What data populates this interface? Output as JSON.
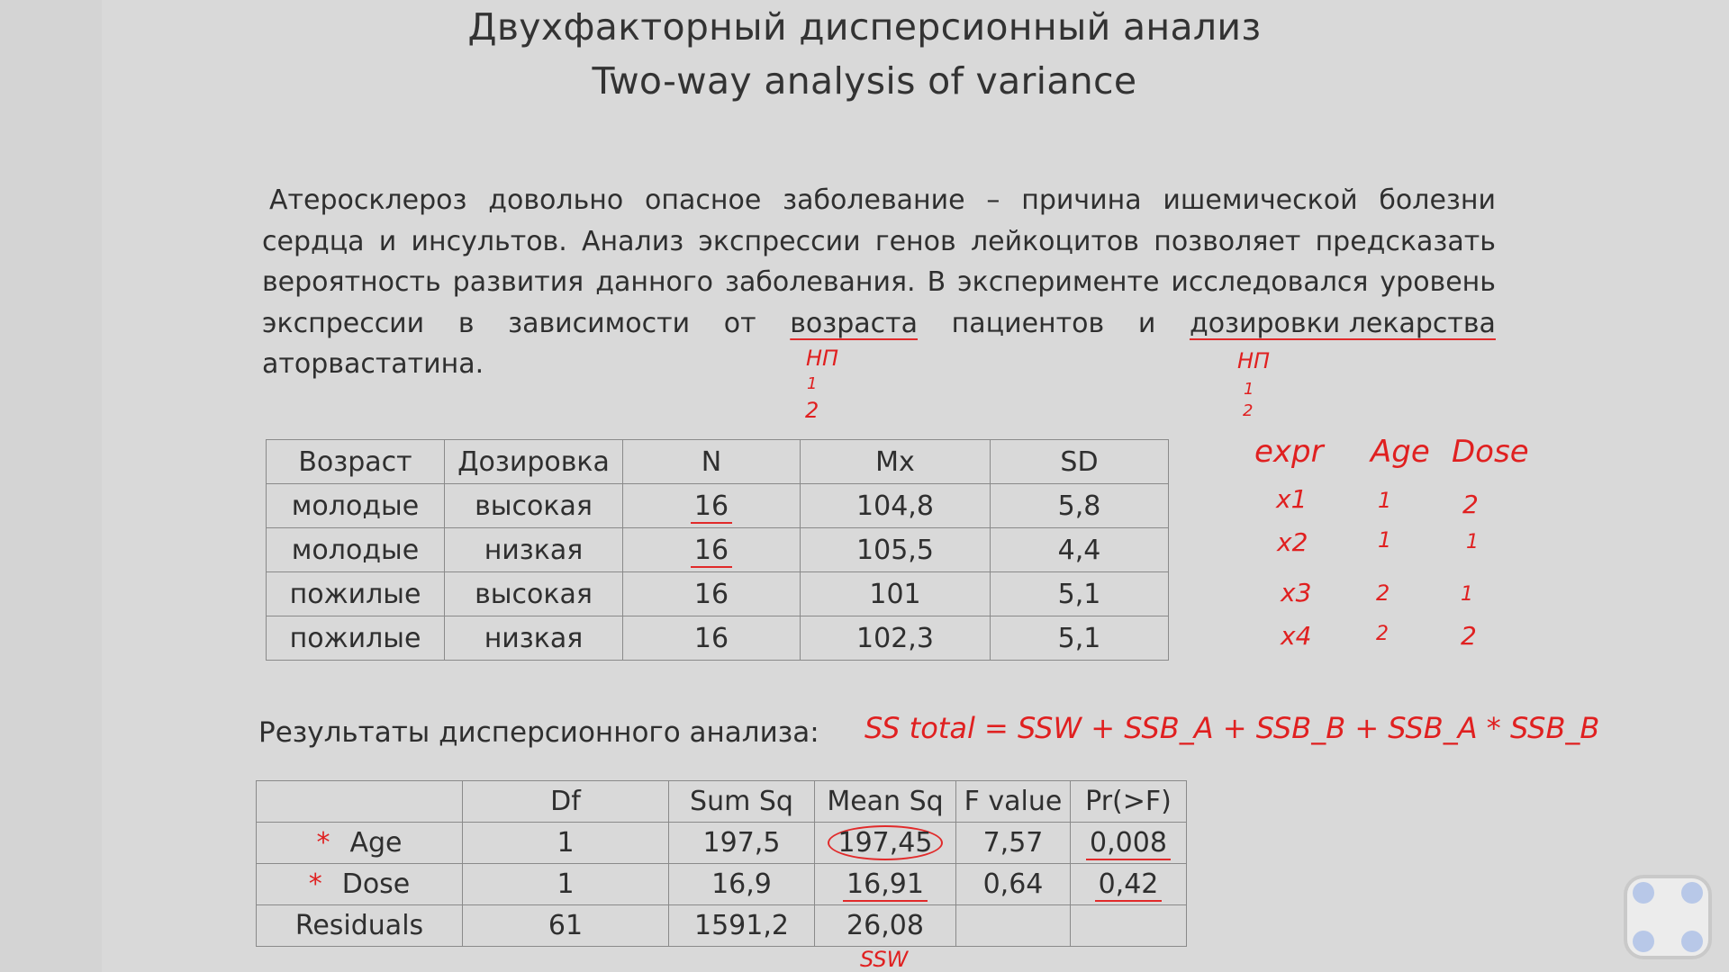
{
  "title_ru": "Двухфакторный дисперсионный анализ",
  "title_en": "Two-way analysis of variance",
  "paragraph": {
    "line1": [
      "Атеросклероз",
      "довольно",
      "опасное",
      "заболевание",
      "–",
      "причина",
      "ишемической",
      "болезни"
    ],
    "line2": [
      "сердца",
      "и",
      "инсультов.",
      "Анализ",
      "экспрессии",
      "генов",
      "лейкоцитов",
      "позволяет",
      "предсказать"
    ],
    "line3": [
      "вероятность",
      "развития",
      "данного",
      "заболевания.",
      "В",
      "эксперименте",
      "исследовался",
      "уровень"
    ],
    "line4": [
      "экспрессии",
      "в",
      "зависимости",
      "от",
      "возраста",
      "пациентов",
      "и",
      "дозировки лекарства"
    ],
    "line5": "аторвастатина."
  },
  "table1": {
    "headers": [
      "Возраст",
      "Дозировка",
      "N",
      "Mx",
      "SD"
    ],
    "rows": [
      [
        "молодые",
        "высокая",
        "16",
        "104,8",
        "5,8"
      ],
      [
        "молодые",
        "низкая",
        "16",
        "105,5",
        "4,4"
      ],
      [
        "пожилые",
        "высокая",
        "16",
        "101",
        "5,1"
      ],
      [
        "пожилые",
        "низкая",
        "16",
        "102,3",
        "5,1"
      ]
    ]
  },
  "section_label": "Результаты дисперсионного анализа:",
  "table2": {
    "headers": [
      "",
      "Df",
      "Sum Sq",
      "Mean Sq",
      "F value",
      "Pr(>F)"
    ],
    "rows": [
      [
        "Age",
        "1",
        "197,5",
        "197,45",
        "7,57",
        "0,008"
      ],
      [
        "Dose",
        "1",
        "16,9",
        "16,91",
        "0,64",
        "0,42"
      ],
      [
        "Residuals",
        "61",
        "1591,2",
        "26,08",
        "",
        ""
      ]
    ]
  },
  "annotations": {
    "np_age": "НП",
    "np_dose": "НП",
    "one": "1",
    "two": "2",
    "expr_table": {
      "headers": [
        "expr",
        "Age",
        "Dose"
      ],
      "rows": [
        [
          "x1",
          "1",
          "2"
        ],
        [
          "x2",
          "1",
          "1"
        ],
        [
          "x3",
          "2",
          "1"
        ],
        [
          "x4",
          "2",
          "2"
        ]
      ]
    },
    "formula": "SS total = SSW + SSB_A + SSB_B + SSB_A * SSB_B",
    "star": "*",
    "ssw": "SSW"
  },
  "colors": {
    "background": "#d9d9d9",
    "ink_red": "#e02020",
    "text": "#2f2f2f"
  }
}
